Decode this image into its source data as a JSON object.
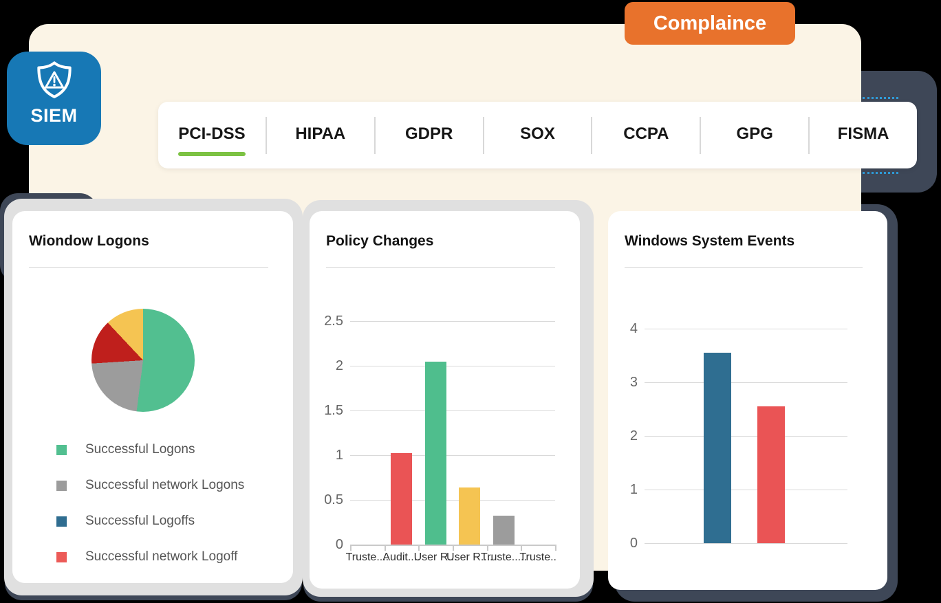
{
  "siem_badge": {
    "label": "SIEM",
    "bg": "#1778B5"
  },
  "compliance_badge": {
    "label": "Complaince",
    "bg": "#E8722C"
  },
  "tab_bar": {
    "active_index": 0,
    "active_underline_color": "#7CC243",
    "tabs": [
      "PCI-DSS",
      "HIPAA",
      "GDPR",
      "SOX",
      "CCPA",
      "GPG",
      "FISMA"
    ]
  },
  "cards": [
    {
      "title": "Wiondow Logons",
      "chart_data": {
        "type": "pie",
        "slices": [
          {
            "value": 52,
            "color": "#52BF90"
          },
          {
            "value": 22,
            "color": "#9C9C9C"
          },
          {
            "value": 14,
            "color": "#BF1F1C"
          },
          {
            "value": 12,
            "color": "#F5C452"
          }
        ]
      },
      "legend": [
        {
          "label": "Successful Logons",
          "color": "#52BF90"
        },
        {
          "label": "Successful network Logons",
          "color": "#9C9C9C"
        },
        {
          "label": "Successful Logoffs",
          "color": "#2F6D90"
        },
        {
          "label": "Successful network Logoff",
          "color": "#EC5A57"
        }
      ]
    },
    {
      "title": "Policy Changes",
      "chart_data": {
        "type": "bar",
        "categories": [
          "Truste....",
          "Audit....",
          "User R...",
          "User R....",
          "Truste.....",
          "Truste.."
        ],
        "values": [
          0,
          1.02,
          2.05,
          0.64,
          0.32,
          0
        ],
        "bar_colors": [
          "",
          "#EA5455",
          "#4FBE8D",
          "#F5C452",
          "#9C9C9C",
          ""
        ],
        "yticks": [
          0,
          0.5,
          1,
          1.5,
          2,
          2.5
        ],
        "ylim": [
          0,
          2.5
        ],
        "grid": true
      }
    },
    {
      "title": "Windows System Events",
      "chart_data": {
        "type": "bar",
        "categories": [
          "",
          ""
        ],
        "values": [
          3.55,
          2.55
        ],
        "bar_colors": [
          "#2F6E91",
          "#EA5455"
        ],
        "yticks": [
          0,
          1,
          2,
          3,
          4
        ],
        "ylim": [
          0,
          4
        ],
        "grid": true
      }
    }
  ],
  "colors": {
    "background": "#000000",
    "panel_cream": "#FBF4E6",
    "dark_slate": "#3E4757",
    "gray_layer": "#E0E0E0",
    "tab_divider": "#D8D8D8",
    "dotted_accent": "#2F9BD8"
  }
}
